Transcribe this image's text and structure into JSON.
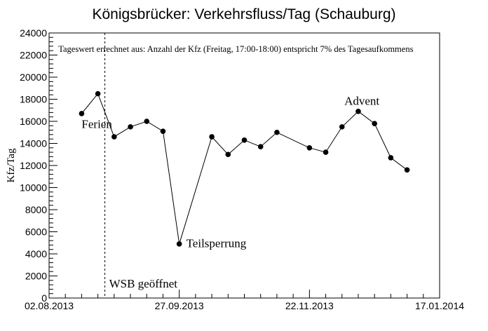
{
  "chart_data": {
    "type": "line",
    "title": "Königsbrücker: Verkehrsfluss/Tag (Schauburg)",
    "xlabel": "",
    "ylabel": "Kfz/Tag",
    "ylim": [
      0,
      24000
    ],
    "y_ticks": [
      0,
      2000,
      4000,
      6000,
      8000,
      10000,
      12000,
      14000,
      16000,
      18000,
      20000,
      22000,
      24000
    ],
    "x_range": [
      "2013-08-02",
      "2014-01-17"
    ],
    "x_tick_labels": [
      {
        "date": "2013-08-02",
        "label": "02.08.2013"
      },
      {
        "date": "2013-09-27",
        "label": "27.09.2013"
      },
      {
        "date": "2013-11-22",
        "label": "22.11.2013"
      },
      {
        "date": "2014-01-17",
        "label": "17.01.2014"
      }
    ],
    "grid": false,
    "marker": "filled-circle",
    "line_color": "#000000",
    "series": [
      {
        "points": [
          {
            "x": "2013-08-16",
            "y": 16700
          },
          {
            "x": "2013-08-23",
            "y": 18500
          },
          {
            "x": "2013-08-30",
            "y": 14600
          },
          {
            "x": "2013-09-06",
            "y": 15500
          },
          {
            "x": "2013-09-13",
            "y": 16000
          },
          {
            "x": "2013-09-20",
            "y": 15100
          },
          {
            "x": "2013-09-27",
            "y": 4900
          },
          {
            "x": "2013-10-11",
            "y": 14600
          },
          {
            "x": "2013-10-18",
            "y": 13000
          },
          {
            "x": "2013-10-25",
            "y": 14300
          },
          {
            "x": "2013-11-01",
            "y": 13700
          },
          {
            "x": "2013-11-08",
            "y": 15000
          },
          {
            "x": "2013-11-22",
            "y": 13600
          },
          {
            "x": "2013-11-29",
            "y": 13200
          },
          {
            "x": "2013-12-06",
            "y": 15500
          },
          {
            "x": "2013-12-13",
            "y": 16900
          },
          {
            "x": "2013-12-20",
            "y": 15800
          },
          {
            "x": "2013-12-27",
            "y": 12700
          },
          {
            "x": "2014-01-03",
            "y": 11600
          }
        ]
      }
    ],
    "vertical_line": {
      "x": "2013-08-26",
      "style": "dashed",
      "label": "WSB geöffnet"
    },
    "annotations": [
      {
        "text": "Tageswert errechnet aus: Anzahl der Kfz (Freitag, 17:00-18:00) entspricht 7% des Tagesaufkommens",
        "x": "2013-08-06",
        "y": 22300
      },
      {
        "text": "Ferien",
        "x": "2013-08-16",
        "y": 15400
      },
      {
        "text": "Teilsperrung",
        "x": "2013-09-30",
        "y": 4600
      },
      {
        "text": "Advent",
        "x": "2013-12-07",
        "y": 17500
      }
    ]
  }
}
